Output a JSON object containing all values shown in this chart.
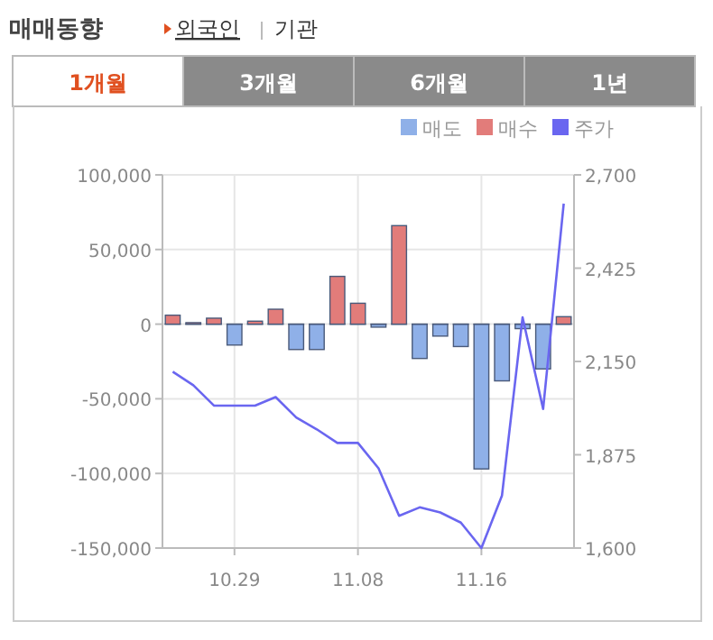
{
  "chart_data": {
    "type": "bar",
    "title": "매매동향",
    "subtitle": "외국인",
    "annotations": [
      "기관",
      "1개월",
      "3개월",
      "6개월",
      "1년"
    ],
    "categories": [
      null,
      null,
      null,
      "10.29",
      null,
      null,
      null,
      null,
      null,
      "11.08",
      null,
      null,
      null,
      null,
      null,
      "11.16",
      null,
      null,
      null,
      null
    ],
    "series": [
      {
        "name": "매도",
        "color": "#8fb0e8",
        "values": [
          0,
          0,
          0,
          -14000,
          0,
          0,
          -17000,
          -17000,
          0,
          0,
          -2000,
          0,
          -23000,
          -8000,
          -15000,
          -97000,
          -38000,
          -3000,
          -30000,
          0
        ]
      },
      {
        "name": "매수",
        "color": "#e27c7a",
        "values": [
          6000,
          1000,
          4000,
          0,
          2000,
          10000,
          0,
          0,
          32000,
          14000,
          0,
          66000,
          0,
          0,
          0,
          0,
          0,
          0,
          0,
          5000
        ]
      },
      {
        "name": "주가",
        "color": "#6a66f0",
        "type": "line",
        "axis": "y2",
        "values": [
          2120,
          2080,
          2020,
          2020,
          2020,
          2045,
          1985,
          1950,
          1910,
          1910,
          1835,
          1695,
          1720,
          1705,
          1675,
          1600,
          1755,
          2280,
          2010,
          2615
        ]
      }
    ],
    "ylim": [
      -150000,
      100000
    ],
    "yticks": [
      {
        "value": -150000,
        "label": "-150,000"
      },
      {
        "value": -100000,
        "label": "-100,000"
      },
      {
        "value": -50000,
        "label": "-50,000"
      },
      0,
      {
        "value": 50000,
        "label": "50,000"
      },
      {
        "value": 100000,
        "label": "100,000"
      }
    ],
    "y2lim": [
      1600,
      2700
    ],
    "y2ticks": [
      {
        "value": 1600,
        "label": "1,600"
      },
      {
        "value": 1875,
        "label": "1,875"
      },
      {
        "value": 2150,
        "label": "2,150"
      },
      {
        "value": 2425,
        "label": "2,425"
      },
      {
        "value": 2700,
        "label": "2,700"
      }
    ],
    "grid": true,
    "legend": "top right"
  }
}
